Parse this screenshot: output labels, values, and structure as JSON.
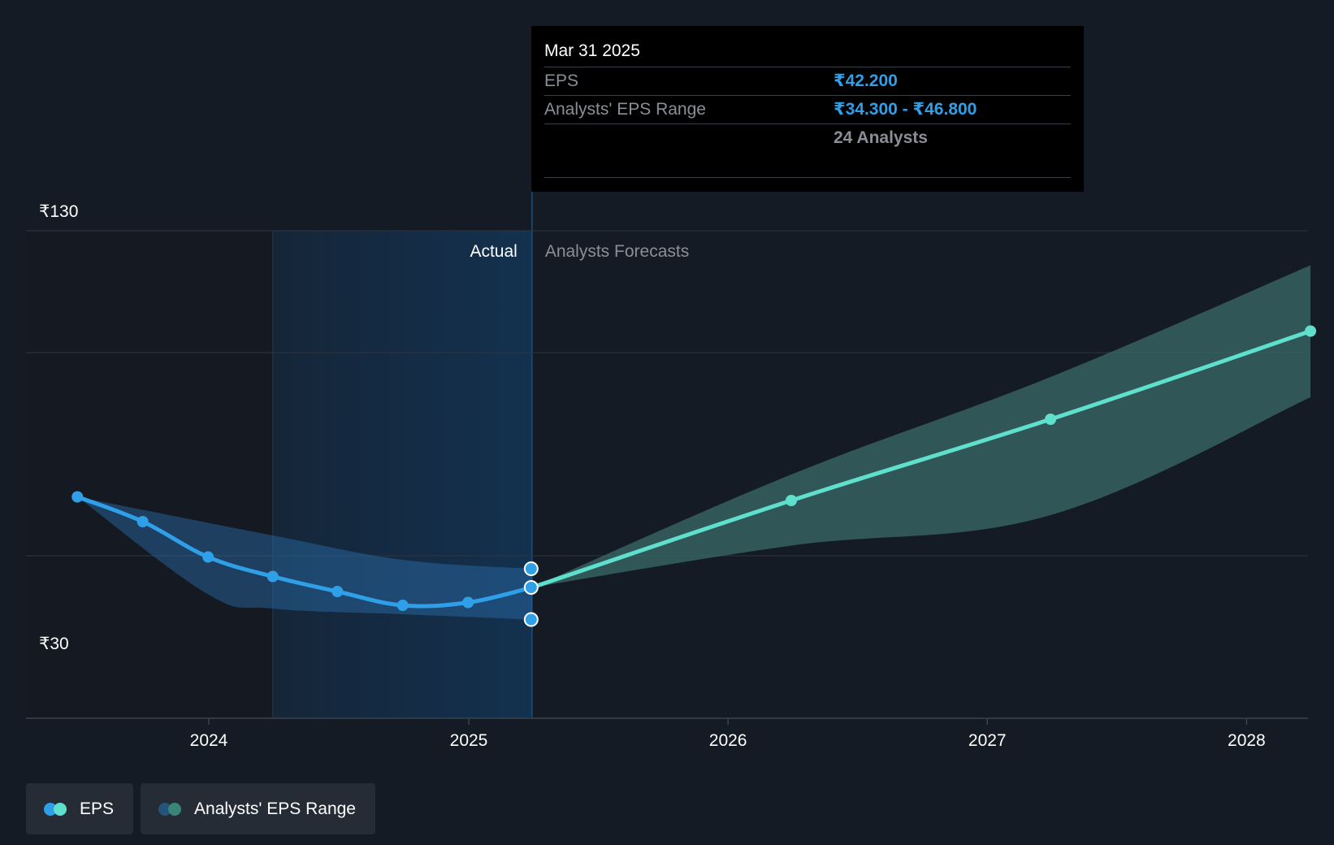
{
  "chart_data": {
    "type": "line",
    "currency": "₹",
    "y_ticks": [
      {
        "value": 130,
        "label": "₹130"
      },
      {
        "value": 30,
        "label": "₹30"
      }
    ],
    "x_ticks": [
      {
        "value": "2024-01-01",
        "label": "2024"
      },
      {
        "value": "2025-01-01",
        "label": "2025"
      },
      {
        "value": "2026-01-01",
        "label": "2026"
      },
      {
        "value": "2027-01-01",
        "label": "2027"
      },
      {
        "value": "2028-01-01",
        "label": "2028"
      }
    ],
    "sections": {
      "actual_label": "Actual",
      "forecast_label": "Analysts Forecasts",
      "divider_date": "2025-03-31"
    },
    "series": [
      {
        "name": "EPS",
        "color": "#2f9fe8",
        "points": [
          {
            "x": "2023-06-30",
            "y": 64.5
          },
          {
            "x": "2023-09-30",
            "y": 58.4
          },
          {
            "x": "2023-12-31",
            "y": 49.7
          },
          {
            "x": "2024-03-31",
            "y": 44.9
          },
          {
            "x": "2024-06-30",
            "y": 41.2
          },
          {
            "x": "2024-09-30",
            "y": 37.8
          },
          {
            "x": "2024-12-31",
            "y": 38.5
          },
          {
            "x": "2025-03-31",
            "y": 42.2
          }
        ]
      },
      {
        "name": "EPS",
        "color": "#5ee0cc",
        "points": [
          {
            "x": "2025-03-31",
            "y": 42.2
          },
          {
            "x": "2026-03-31",
            "y": 63.6
          },
          {
            "x": "2027-03-31",
            "y": 83.6
          },
          {
            "x": "2028-03-31",
            "y": 105.3
          }
        ]
      }
    ],
    "ranges": [
      {
        "name": "Analysts' EPS Range",
        "color": "#2f9fe8",
        "upper": [
          {
            "x": "2023-06-30",
            "y": 64.5
          },
          {
            "x": "2024-03-31",
            "y": 55.0
          },
          {
            "x": "2024-09-30",
            "y": 49.0
          },
          {
            "x": "2025-03-31",
            "y": 46.8
          }
        ],
        "lower": [
          {
            "x": "2023-06-30",
            "y": 64.5
          },
          {
            "x": "2023-12-31",
            "y": 40.5
          },
          {
            "x": "2024-03-31",
            "y": 37.0
          },
          {
            "x": "2024-09-30",
            "y": 35.6
          },
          {
            "x": "2025-03-31",
            "y": 34.3
          }
        ]
      },
      {
        "name": "Analysts' EPS Range",
        "color": "#3a6b68",
        "upper": [
          {
            "x": "2025-03-31",
            "y": 42.2
          },
          {
            "x": "2026-03-31",
            "y": 70.0
          },
          {
            "x": "2027-03-31",
            "y": 94.0
          },
          {
            "x": "2028-03-31",
            "y": 121.5
          }
        ],
        "lower": [
          {
            "x": "2025-03-31",
            "y": 42.2
          },
          {
            "x": "2026-03-31",
            "y": 52.5
          },
          {
            "x": "2027-03-31",
            "y": 60.0
          },
          {
            "x": "2028-03-31",
            "y": 89.0
          }
        ]
      }
    ],
    "ylim": [
      10,
      130
    ],
    "grid": true,
    "legend_position": "bottom-left"
  },
  "tooltip": {
    "date": "Mar 31 2025",
    "eps_label": "EPS",
    "eps_value": "₹42.200",
    "range_label": "Analysts' EPS Range",
    "range_low": "₹34.300",
    "range_sep": " - ",
    "range_high": "₹46.800",
    "analysts": "24 Analysts"
  },
  "legend": [
    {
      "label": "EPS",
      "colors": [
        "#2f9fe8",
        "#5ee0cc"
      ]
    },
    {
      "label": "Analysts' EPS Range",
      "colors": [
        "#23557c",
        "#3a8478"
      ]
    }
  ]
}
